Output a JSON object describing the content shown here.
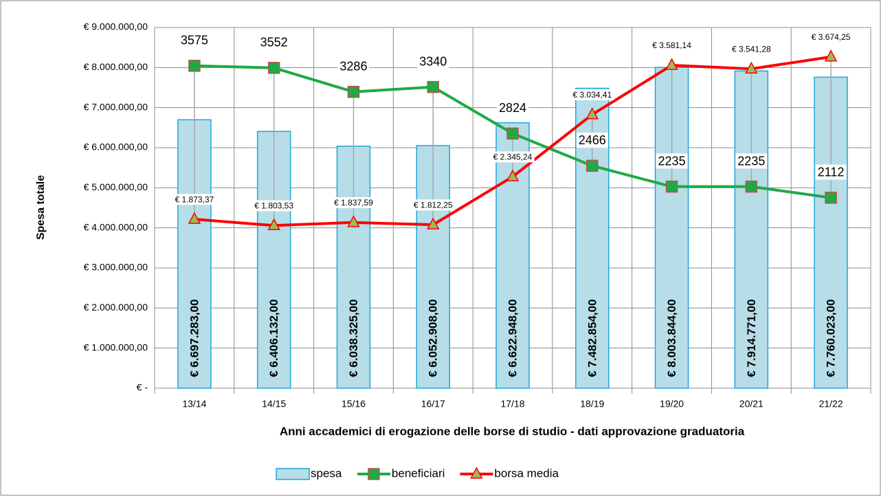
{
  "chart_data": {
    "type": "bar_line",
    "y_label": "Spesa totale",
    "x_label": "Anni  accademici di erogazione delle borse di studio - dati approvazione graduatoria",
    "categories": [
      "13/14",
      "14/15",
      "15/16",
      "16/17",
      "17/18",
      "18/19",
      "19/20",
      "20/21",
      "21/22"
    ],
    "ylim": [
      0,
      9000000
    ],
    "yticks": [
      {
        "value": 0,
        "label": "€ -"
      },
      {
        "value": 1000000,
        "label": "€ 1.000.000,00"
      },
      {
        "value": 2000000,
        "label": "€ 2.000.000,00"
      },
      {
        "value": 3000000,
        "label": "€ 3.000.000,00"
      },
      {
        "value": 4000000,
        "label": "€ 4.000.000,00"
      },
      {
        "value": 5000000,
        "label": "€ 5.000.000,00"
      },
      {
        "value": 6000000,
        "label": "€ 6.000.000,00"
      },
      {
        "value": 7000000,
        "label": "€ 7.000.000,00"
      },
      {
        "value": 8000000,
        "label": "€ 8.000.000,00"
      },
      {
        "value": 9000000,
        "label": "€ 9.000.000,00"
      }
    ],
    "y2lim": [
      0,
      4000
    ],
    "grid": true,
    "legend": "bottom",
    "series": [
      {
        "name": "spesa",
        "kind": "bar",
        "color": "#b7dde8",
        "edge": "#1fa6d6",
        "values": [
          6697283,
          6406132,
          6038325,
          6052908,
          6622948,
          7482854,
          8003844,
          7914771,
          7760023
        ],
        "value_labels": [
          "€ 6.697.283,00",
          "€ 6.406.132,00",
          "€ 6.038.325,00",
          "€ 6.052.908,00",
          "€ 6.622.948,00",
          "€ 7.482.854,00",
          "€ 8.003.844,00",
          "€ 7.914.771,00",
          "€ 7.760.023,00"
        ]
      },
      {
        "name": "beneficiari",
        "kind": "line",
        "axis": "y2",
        "color": "#1faa45",
        "marker": "square",
        "marker_edge": "#c0504d",
        "values": [
          3575,
          3552,
          3286,
          3340,
          2824,
          2466,
          2235,
          2235,
          2112
        ]
      },
      {
        "name": "borsa media",
        "kind": "line",
        "axis": "y2",
        "color": "#ff0000",
        "marker": "triangle",
        "marker_fill": "#9bbb59",
        "values": [
          1873.37,
          1803.53,
          1837.59,
          1812.25,
          2345.24,
          3034.41,
          3581.14,
          3541.28,
          3674.25
        ],
        "value_labels": [
          "€ 1.873,37",
          "€ 1.803,53",
          "€ 1.837,59",
          "€ 1.812,25",
          "€ 2.345,24",
          "€ 3.034,41",
          "€ 3.581,14",
          "€ 3.541,28",
          "€ 3.674,25"
        ]
      }
    ]
  }
}
